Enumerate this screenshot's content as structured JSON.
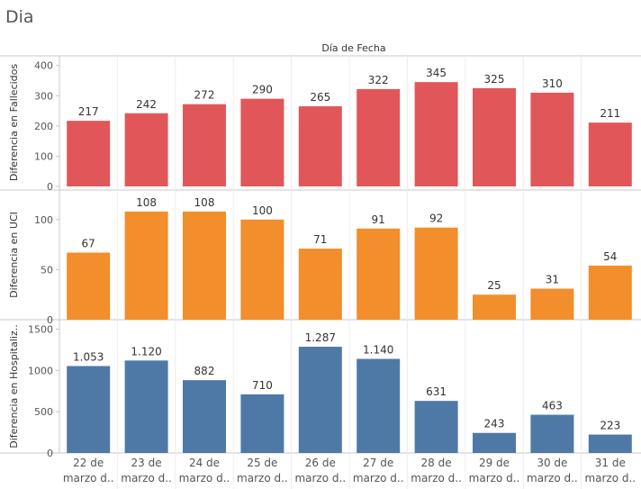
{
  "page_title": "Dia",
  "chart_data": {
    "type": "bar",
    "x_header": "Día de Fecha",
    "categories": [
      {
        "line1": "22 de",
        "line2": "marzo d.."
      },
      {
        "line1": "23 de",
        "line2": "marzo d.."
      },
      {
        "line1": "24 de",
        "line2": "marzo d.."
      },
      {
        "line1": "25 de",
        "line2": "marzo d.."
      },
      {
        "line1": "26 de",
        "line2": "marzo d.."
      },
      {
        "line1": "27 de",
        "line2": "marzo d.."
      },
      {
        "line1": "28 de",
        "line2": "marzo d.."
      },
      {
        "line1": "29 de",
        "line2": "marzo d.."
      },
      {
        "line1": "30 de",
        "line2": "marzo d.."
      },
      {
        "line1": "31 de",
        "line2": "marzo d.."
      }
    ],
    "panels": [
      {
        "name": "Diferencia en Fallecidos",
        "ylabel": "Diferencia en Fallecidos",
        "color": "#e15759",
        "ylim": [
          0,
          420
        ],
        "yticks": [
          0,
          100,
          200,
          300,
          400
        ],
        "ytick_labels": [
          "0",
          "100",
          "200",
          "300",
          "400"
        ],
        "values": [
          217,
          242,
          272,
          290,
          265,
          322,
          345,
          325,
          310,
          211
        ],
        "value_labels": [
          "217",
          "242",
          "272",
          "290",
          "265",
          "322",
          "345",
          "325",
          "310",
          "211"
        ]
      },
      {
        "name": "Diferencia en UCI",
        "ylabel": "Diferencia en UCI",
        "color": "#f28e2b",
        "ylim": [
          0,
          125
        ],
        "yticks": [
          0,
          50,
          100
        ],
        "ytick_labels": [
          "0",
          "50",
          "100"
        ],
        "values": [
          67,
          108,
          108,
          100,
          71,
          91,
          92,
          25,
          31,
          54
        ],
        "value_labels": [
          "67",
          "108",
          "108",
          "100",
          "71",
          "91",
          "92",
          "25",
          "31",
          "54"
        ]
      },
      {
        "name": "Diferencia en Hospitalizados",
        "ylabel": "Diferencia en Hospitaliz..",
        "color": "#4e79a7",
        "ylim": [
          0,
          1560
        ],
        "yticks": [
          0,
          500,
          1000,
          1500
        ],
        "ytick_labels": [
          "0",
          "500",
          "1000",
          "1500"
        ],
        "values": [
          1053,
          1120,
          882,
          710,
          1287,
          1140,
          631,
          243,
          463,
          223
        ],
        "value_labels": [
          "1.053",
          "1.120",
          "882",
          "710",
          "1.287",
          "1.140",
          "631",
          "243",
          "463",
          "223"
        ]
      }
    ]
  }
}
